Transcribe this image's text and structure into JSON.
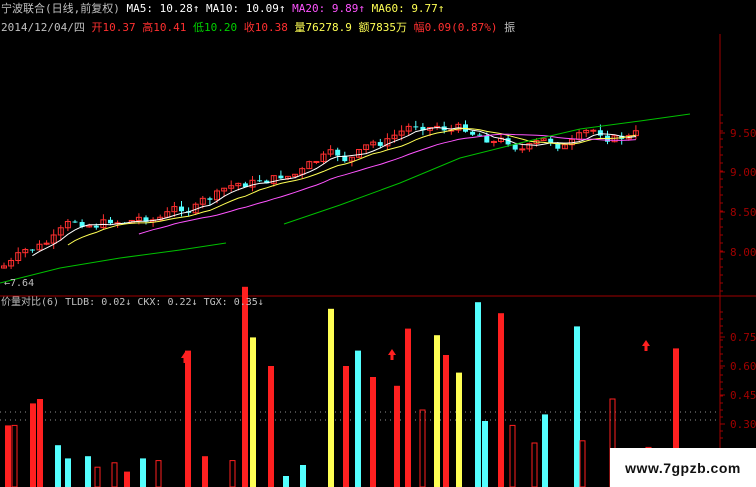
{
  "header": {
    "stock_title": "宁波联合(日线,前复权)",
    "ma5_label": "MA5: 10.28↑",
    "ma10_label": "MA10: 10.09↑",
    "ma20_label": "MA20: 9.89↑",
    "ma60_label": "MA60: 9.77↑"
  },
  "quote": {
    "date": "2014/12/04/四",
    "open_label": "开10.37",
    "high_label": "高10.41",
    "low_label": "低10.20",
    "close_label": "收10.38",
    "volume_label": "量76278.9",
    "amount_label": "额7835万",
    "change_label": "幅0.09(0.87%)",
    "extra_label": "振"
  },
  "indicator": {
    "title": "价量对比(6)",
    "tldb_label": "TLDB: 0.02↓",
    "ckx_label": "CKX: 0.22↓",
    "tgx_label": "TGX: 0.35↓"
  },
  "price_axis": [
    "9.50",
    "9.00",
    "8.50",
    "8.00"
  ],
  "indicator_axis": [
    "0.75",
    "0.60",
    "0.45",
    "0.30"
  ],
  "low_marker": "←7.64",
  "watermark": "www.7gpzb.com",
  "colors": {
    "up": "#ff3030",
    "down": "#54ffff",
    "ma5": "#ffffff",
    "ma10": "#ffff54",
    "ma20": "#ff54ff",
    "ma60": "#00c000",
    "axis": "#a00000",
    "bar_red": "#ff2020",
    "bar_cyan": "#54ffff",
    "bar_yellow": "#ffff54",
    "bar_dark": "#800000"
  }
}
